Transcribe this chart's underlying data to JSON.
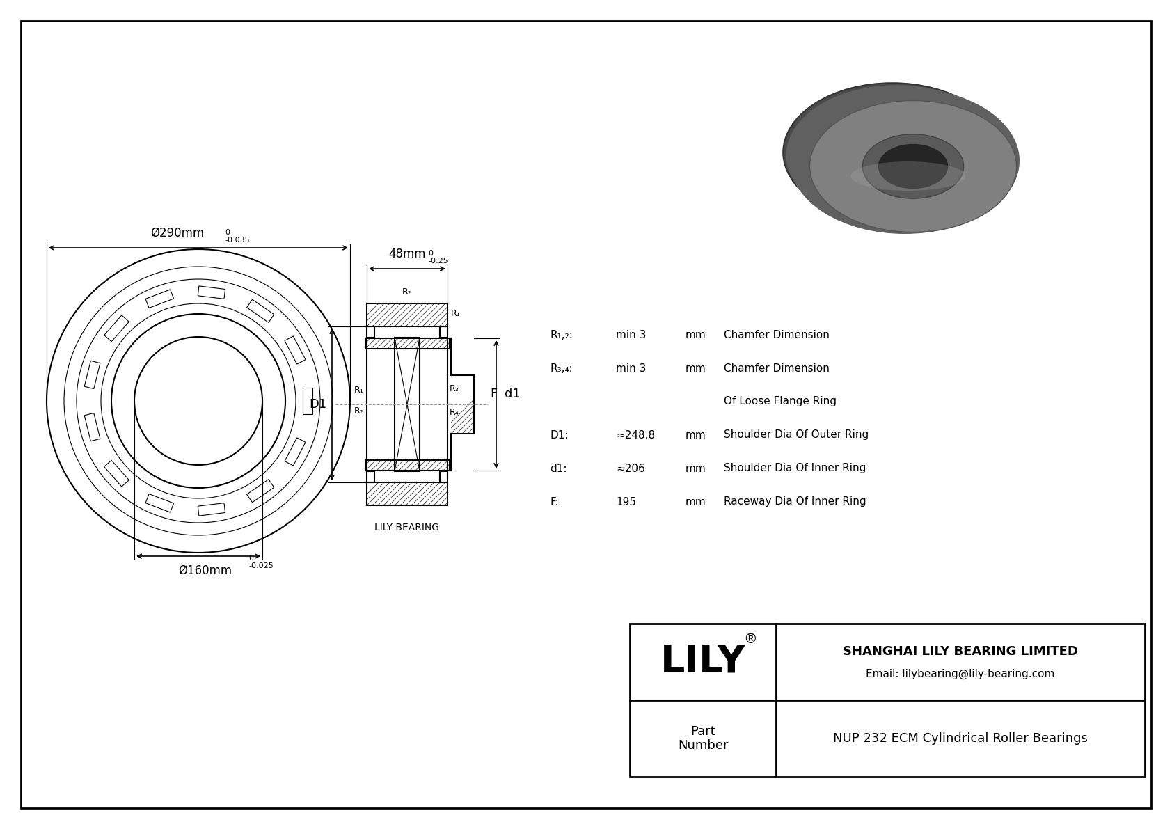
{
  "bg_color": "#ffffff",
  "line_color": "#000000",
  "title": "NUP 232 ECM Cylindrical Roller Bearings",
  "company": "SHANGHAI LILY BEARING LIMITED",
  "email": "Email: lilybearing@lily-bearing.com",
  "part_label": "Part\nNumber",
  "lily_brand": "LILY",
  "lily_bearing_label": "LILY BEARING",
  "dim_outer": "Ø290mm",
  "dim_outer_tol_top": "0",
  "dim_outer_tol_bot": "-0.035",
  "dim_inner": "Ø160mm",
  "dim_inner_tol_top": "0",
  "dim_inner_tol_bot": "-0.025",
  "dim_width": "48mm",
  "dim_width_tol_top": "0",
  "dim_width_tol_bot": "-0.25",
  "params": [
    {
      "label": "R₁,₂:",
      "value": "min 3",
      "unit": "mm",
      "desc": "Chamfer Dimension"
    },
    {
      "label": "R₃,₄:",
      "value": "min 3",
      "unit": "mm",
      "desc": "Chamfer Dimension"
    },
    {
      "label": "",
      "value": "",
      "unit": "",
      "desc": "Of Loose Flange Ring"
    },
    {
      "label": "D1:",
      "value": "≈248.8",
      "unit": "mm",
      "desc": "Shoulder Dia Of Outer Ring"
    },
    {
      "label": "d1:",
      "value": "≈206",
      "unit": "mm",
      "desc": "Shoulder Dia Of Inner Ring"
    },
    {
      "label": "F:",
      "value": "195",
      "unit": "mm",
      "desc": "Raceway Dia Of Inner Ring"
    }
  ]
}
